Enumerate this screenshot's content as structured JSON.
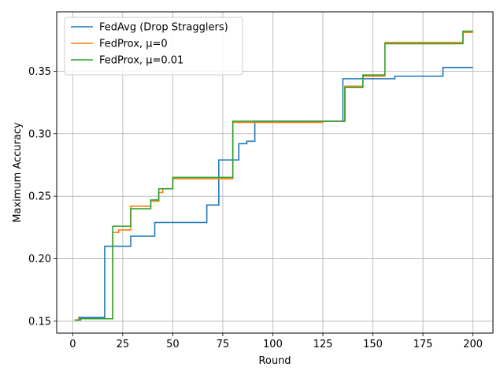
{
  "chart_data": {
    "type": "line",
    "title": "",
    "xlabel": "Round",
    "ylabel": "Maximum Accuracy",
    "xlim": [
      -8,
      210
    ],
    "ylim": [
      0.1405,
      0.3975
    ],
    "xticks": [
      0,
      25,
      50,
      75,
      100,
      125,
      150,
      175,
      200
    ],
    "xtick_labels": [
      "0",
      "25",
      "50",
      "75",
      "100",
      "125",
      "150",
      "175",
      "200"
    ],
    "yticks": [
      0.15,
      0.2,
      0.25,
      0.3,
      0.35
    ],
    "ytick_labels": [
      "0.15",
      "0.20",
      "0.25",
      "0.30",
      "0.35"
    ],
    "grid": true,
    "legend_position": "top-left",
    "step": true,
    "series": [
      {
        "name": "FedAvg (Drop Stragglers)",
        "color": "#1f77b4",
        "points": [
          [
            1,
            0.151
          ],
          [
            3,
            0.153
          ],
          [
            16,
            0.21
          ],
          [
            29,
            0.218
          ],
          [
            41,
            0.229
          ],
          [
            67,
            0.243
          ],
          [
            73,
            0.279
          ],
          [
            83,
            0.292
          ],
          [
            87,
            0.294
          ],
          [
            91,
            0.31
          ],
          [
            135,
            0.344
          ],
          [
            161,
            0.346
          ],
          [
            185,
            0.353
          ],
          [
            200,
            0.353
          ]
        ]
      },
      {
        "name": "FedProx, μ=0",
        "color": "#ff7f0e",
        "points": [
          [
            1,
            0.151
          ],
          [
            3,
            0.152
          ],
          [
            20,
            0.221
          ],
          [
            23,
            0.223
          ],
          [
            29,
            0.242
          ],
          [
            39,
            0.246
          ],
          [
            43,
            0.253
          ],
          [
            45,
            0.256
          ],
          [
            50,
            0.264
          ],
          [
            80,
            0.309
          ],
          [
            91,
            0.309
          ],
          [
            125,
            0.31
          ],
          [
            136,
            0.338
          ],
          [
            145,
            0.346
          ],
          [
            156,
            0.373
          ],
          [
            195,
            0.381
          ],
          [
            200,
            0.381
          ]
        ]
      },
      {
        "name": "FedProx, μ=0.01",
        "color": "#2ca02c",
        "points": [
          [
            1,
            0.151
          ],
          [
            4,
            0.152
          ],
          [
            20,
            0.226
          ],
          [
            29,
            0.24
          ],
          [
            39,
            0.247
          ],
          [
            43,
            0.256
          ],
          [
            50,
            0.265
          ],
          [
            80,
            0.31
          ],
          [
            136,
            0.337
          ],
          [
            145,
            0.347
          ],
          [
            156,
            0.372
          ],
          [
            195,
            0.382
          ],
          [
            200,
            0.382
          ]
        ]
      }
    ]
  }
}
